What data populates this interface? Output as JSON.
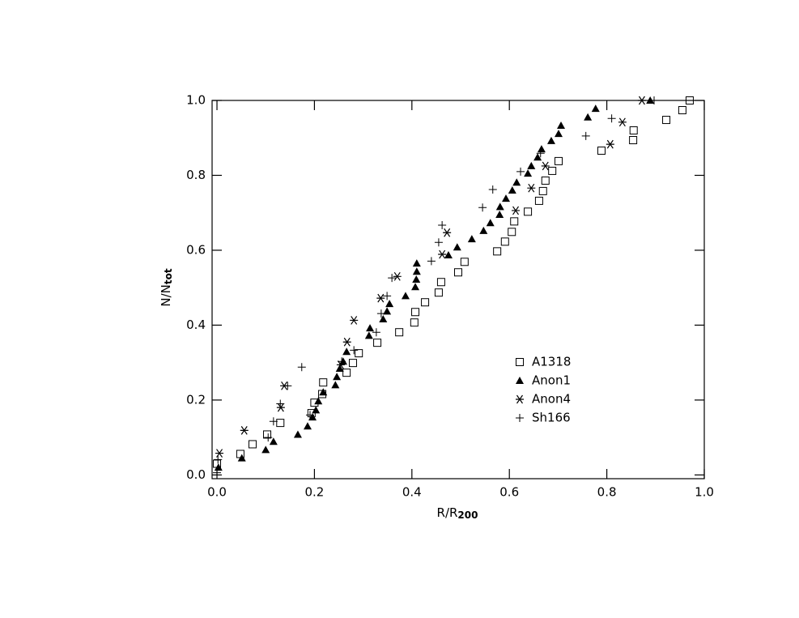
{
  "chart_data": {
    "type": "scatter",
    "xlabel": "R/R",
    "xlabel_sub": "200",
    "ylabel": "N/N",
    "ylabel_sub": "tot",
    "xlim": [
      -0.01,
      1.0
    ],
    "ylim": [
      -0.01,
      1.0
    ],
    "xticks": [
      {
        "value": 0,
        "label": "0.0"
      },
      0.2,
      0.4,
      0.6,
      0.8,
      {
        "value": 1,
        "label": "1.0"
      }
    ],
    "yticks": [
      {
        "value": 0,
        "label": "0.0"
      },
      0.2,
      0.4,
      0.6,
      0.8,
      {
        "value": 1,
        "label": "1.0"
      }
    ],
    "legend": "lower right",
    "series": [
      {
        "name": "A1318",
        "color": "#000000",
        "marker": "square",
        "x": [
          0.0,
          0.048,
          0.073,
          0.103,
          0.13,
          0.194,
          0.2,
          0.216,
          0.218,
          0.266,
          0.279,
          0.291,
          0.329,
          0.374,
          0.405,
          0.407,
          0.427,
          0.455,
          0.46,
          0.495,
          0.508,
          0.575,
          0.591,
          0.605,
          0.61,
          0.638,
          0.661,
          0.669,
          0.674,
          0.688,
          0.701,
          0.789,
          0.854,
          0.855,
          0.922,
          0.955,
          0.97
        ],
        "values": [
          0.03,
          0.056,
          0.082,
          0.108,
          0.139,
          0.165,
          0.193,
          0.216,
          0.247,
          0.273,
          0.299,
          0.325,
          0.353,
          0.381,
          0.407,
          0.435,
          0.461,
          0.487,
          0.515,
          0.541,
          0.569,
          0.597,
          0.623,
          0.649,
          0.677,
          0.703,
          0.732,
          0.758,
          0.786,
          0.812,
          0.838,
          0.866,
          0.894,
          0.92,
          0.948,
          0.974,
          1.0
        ]
      },
      {
        "name": "Anon1",
        "color": "#000000",
        "marker": "triangle",
        "x": [
          0.003,
          0.051,
          0.1,
          0.116,
          0.166,
          0.186,
          0.196,
          0.203,
          0.208,
          0.218,
          0.243,
          0.246,
          0.252,
          0.259,
          0.266,
          0.312,
          0.314,
          0.341,
          0.349,
          0.354,
          0.387,
          0.407,
          0.409,
          0.41,
          0.41,
          0.475,
          0.493,
          0.523,
          0.547,
          0.561,
          0.58,
          0.581,
          0.593,
          0.606,
          0.615,
          0.638,
          0.645,
          0.658,
          0.666,
          0.686,
          0.701,
          0.706,
          0.761,
          0.777,
          0.889
        ],
        "values": [
          0.02,
          0.045,
          0.067,
          0.089,
          0.108,
          0.13,
          0.154,
          0.173,
          0.197,
          0.221,
          0.24,
          0.262,
          0.284,
          0.303,
          0.329,
          0.372,
          0.392,
          0.416,
          0.437,
          0.457,
          0.478,
          0.502,
          0.522,
          0.543,
          0.565,
          0.587,
          0.608,
          0.63,
          0.652,
          0.673,
          0.695,
          0.716,
          0.738,
          0.76,
          0.781,
          0.805,
          0.825,
          0.848,
          0.87,
          0.892,
          0.911,
          0.933,
          0.955,
          0.978,
          1.0
        ]
      },
      {
        "name": "Anon4",
        "color": "#000000",
        "marker": "asterisk",
        "x": [
          0.005,
          0.056,
          0.131,
          0.138,
          0.254,
          0.267,
          0.281,
          0.336,
          0.37,
          0.462,
          0.472,
          0.613,
          0.645,
          0.674,
          0.807,
          0.832,
          0.872
        ],
        "values": [
          0.058,
          0.119,
          0.18,
          0.238,
          0.294,
          0.355,
          0.413,
          0.472,
          0.53,
          0.589,
          0.647,
          0.706,
          0.766,
          0.825,
          0.883,
          0.942,
          1.0
        ]
      },
      {
        "name": "Sh166",
        "color": "#000000",
        "marker": "plus",
        "x": [
          0.0,
          0.002,
          0.105,
          0.116,
          0.13,
          0.145,
          0.174,
          0.191,
          0.256,
          0.281,
          0.327,
          0.337,
          0.349,
          0.359,
          0.44,
          0.455,
          0.462,
          0.545,
          0.566,
          0.623,
          0.664,
          0.757,
          0.81,
          0.897
        ],
        "values": [
          0.006,
          0.041,
          0.1,
          0.143,
          0.19,
          0.238,
          0.288,
          0.16,
          0.303,
          0.333,
          0.381,
          0.431,
          0.478,
          0.526,
          0.571,
          0.621,
          0.667,
          0.714,
          0.762,
          0.81,
          0.859,
          0.905,
          0.952,
          1.0
        ]
      }
    ]
  }
}
